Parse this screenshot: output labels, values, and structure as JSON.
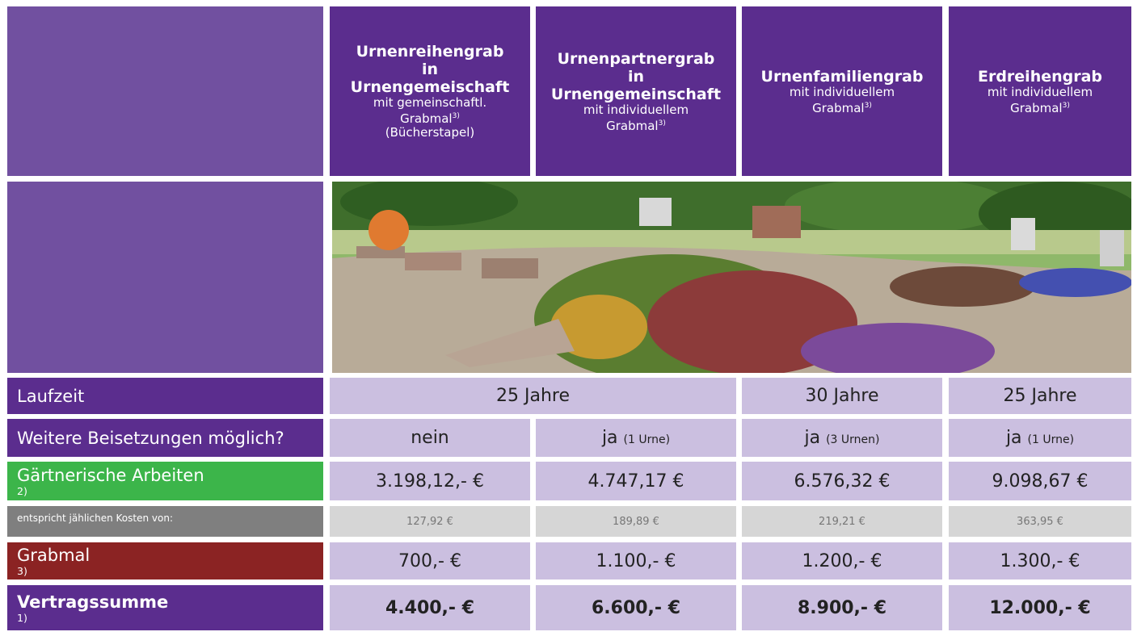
{
  "header": {
    "columns": [
      {
        "title_lines": [
          "Urnenreihengrab",
          "in",
          "Urnengemeischaft"
        ],
        "subtitle_lines": [
          "mit gemeinschaftl.",
          "Grabmal"
        ],
        "note": "3)",
        "extra": "(Bücherstapel)"
      },
      {
        "title_lines": [
          "Urnenpartnergrab",
          "in",
          "Urnengemeinschaft"
        ],
        "subtitle_lines": [
          "mit individuellem",
          "Grabmal"
        ],
        "note": "3)"
      },
      {
        "title_lines": [
          "Urnenfamiliengrab"
        ],
        "subtitle_lines": [
          "mit individuellem",
          "Grabmal"
        ],
        "note": "3)"
      },
      {
        "title_lines": [
          "Erdreihengrab"
        ],
        "subtitle_lines": [
          "mit individuellem",
          "Grabmal"
        ],
        "note": "3)"
      }
    ]
  },
  "rows": {
    "laufzeit": {
      "label": "Laufzeit",
      "cells": [
        "25 Jahre",
        "30 Jahre",
        "25 Jahre"
      ]
    },
    "beisetzungen": {
      "label": "Weitere Beisetzungen möglich?",
      "cells": [
        {
          "main": "nein"
        },
        {
          "main": "ja",
          "note": "(1 Urne)"
        },
        {
          "main": "ja",
          "note": "(3 Urnen)"
        },
        {
          "main": "ja",
          "note": "(1 Urne)"
        }
      ]
    },
    "gaertnerisch": {
      "label": "Gärtnerische Arbeiten",
      "note": "2)",
      "cells": [
        "3.198,12,- €",
        "4.747,17 €",
        "6.576,32 €",
        "9.098,67 €"
      ]
    },
    "jaehrlich": {
      "label": "entspricht jählichen Kosten von:",
      "cells": [
        "127,92 €",
        "189,89 €",
        "219,21 €",
        "363,95 €"
      ]
    },
    "grabmal": {
      "label": "Grabmal",
      "note": "3)",
      "cells": [
        "700,- €",
        "1.100,- €",
        "1.200,- €",
        "1.300,- €"
      ]
    },
    "vertragssumme": {
      "label": "Vertragssumme",
      "note": "1)",
      "cells": [
        "4.400,- €",
        "6.600,- €",
        "8.900,- €",
        "12.000,- €"
      ]
    }
  }
}
